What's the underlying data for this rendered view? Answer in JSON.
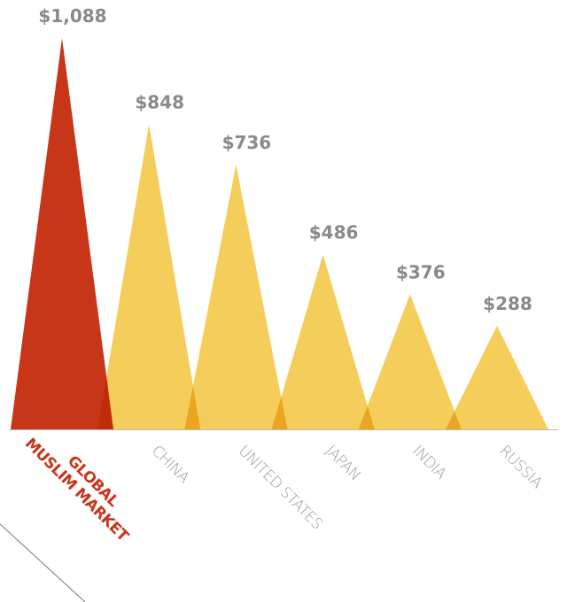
{
  "chart_data": {
    "type": "peak",
    "categories": [
      "GLOBAL MUSLIM MARKET",
      "CHINA",
      "UNITED STATES",
      "JAPAN",
      "INDIA",
      "RUSSIA"
    ],
    "values": [
      1088,
      848,
      736,
      486,
      376,
      288
    ],
    "value_labels": [
      "$1,088",
      "$848",
      "$736",
      "$486",
      "$376",
      "$288"
    ],
    "color": "#f5cd5a",
    "highlight_color": "#c8361a",
    "highlight_index": 0
  }
}
